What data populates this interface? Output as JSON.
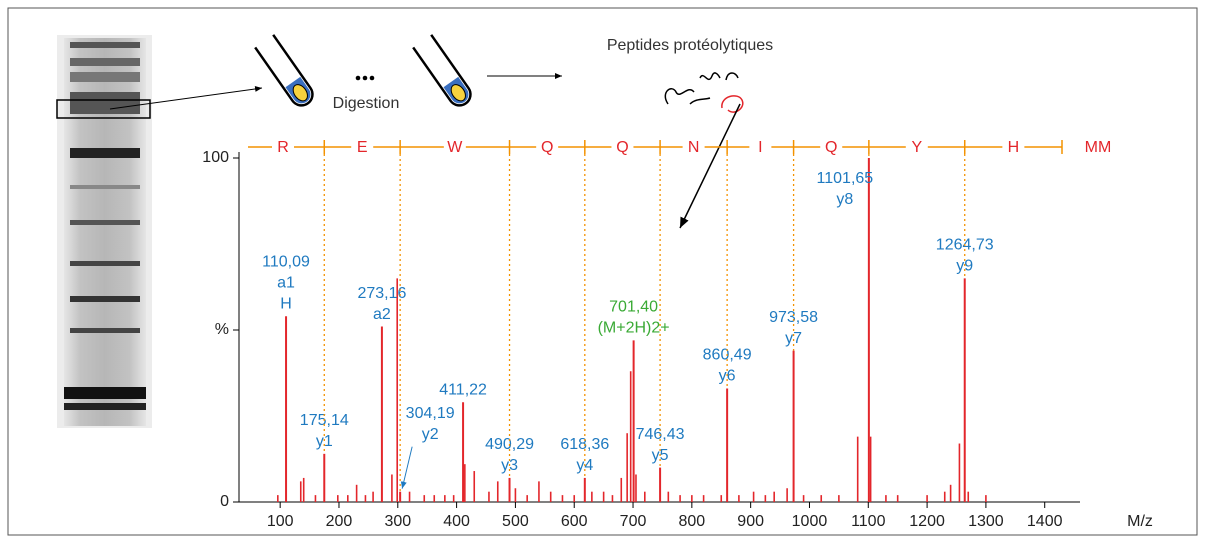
{
  "schematic": {
    "title": "Peptides protéolytiques",
    "step": "Digestion"
  },
  "chart_data": {
    "type": "spectrum",
    "x_label": "M/z",
    "xlim": [
      30,
      1460
    ],
    "xticks": [
      100,
      200,
      300,
      400,
      500,
      600,
      700,
      800,
      900,
      1000,
      1100,
      1200,
      1300,
      1400
    ],
    "ylim": [
      0,
      100
    ],
    "yticks": [
      0,
      {
        "value": 50,
        "label": "%"
      },
      100
    ],
    "peak_color": "#e3262b",
    "sequence": {
      "residues": [
        "R",
        "E",
        "W",
        "Q",
        "Q",
        "N",
        "I",
        "Q",
        "Y",
        "H"
      ],
      "end_label": "MM",
      "color": "#e3262b",
      "line_color": "#f39200"
    },
    "labeled_peaks": {
      "x": [
        110,
        175,
        273,
        304,
        411,
        490,
        618,
        701,
        746,
        860,
        973,
        1101,
        1264
      ],
      "values": [
        54,
        14,
        51,
        3,
        29,
        7,
        7,
        47,
        10,
        33,
        44,
        100,
        65
      ],
      "labels": [
        [
          "110,09",
          "a1",
          "H"
        ],
        [
          "175,14",
          "y1"
        ],
        [
          "273,16",
          "a2"
        ],
        [
          "304,19",
          "y2"
        ],
        [
          "411,22"
        ],
        [
          "490,29",
          "y3"
        ],
        [
          "618,36",
          "y4"
        ],
        [
          "701,40",
          "(M+2H)2+"
        ],
        [
          "746,43",
          "y5"
        ],
        [
          "860,49",
          "y6"
        ],
        [
          "973,58",
          "y7"
        ],
        [
          "1101,65",
          "y8"
        ],
        [
          "1264,73",
          "y9"
        ]
      ],
      "label_colors": [
        "#1f7ac0",
        "#1f7ac0",
        "#1f7ac0",
        "#1f7ac0",
        "#1f7ac0",
        "#1f7ac0",
        "#1f7ac0",
        "#3aaa35",
        "#1f7ac0",
        "#1f7ac0",
        "#1f7ac0",
        "#1f7ac0",
        "#1f7ac0"
      ]
    },
    "peaks": {
      "x": [
        96,
        135,
        140,
        160,
        198,
        215,
        230,
        245,
        258,
        290,
        299,
        320,
        345,
        362,
        380,
        395,
        414,
        430,
        455,
        470,
        500,
        520,
        540,
        560,
        580,
        600,
        630,
        650,
        665,
        680,
        690,
        696,
        705,
        720,
        760,
        780,
        800,
        820,
        850,
        880,
        905,
        925,
        940,
        962,
        990,
        1020,
        1050,
        1082,
        1104,
        1130,
        1150,
        1200,
        1230,
        1240,
        1255,
        1270,
        1300
      ],
      "values": [
        2,
        6,
        7,
        2,
        2,
        2,
        5,
        2,
        3,
        8,
        65,
        3,
        2,
        2,
        2,
        2,
        11,
        9,
        3,
        6,
        4,
        2,
        6,
        3,
        2,
        2,
        3,
        3,
        2,
        7,
        20,
        38,
        8,
        3,
        3,
        2,
        2,
        2,
        2,
        2,
        3,
        2,
        3,
        4,
        2,
        2,
        2,
        19,
        19,
        2,
        2,
        2,
        3,
        5,
        17,
        3,
        2
      ]
    }
  }
}
